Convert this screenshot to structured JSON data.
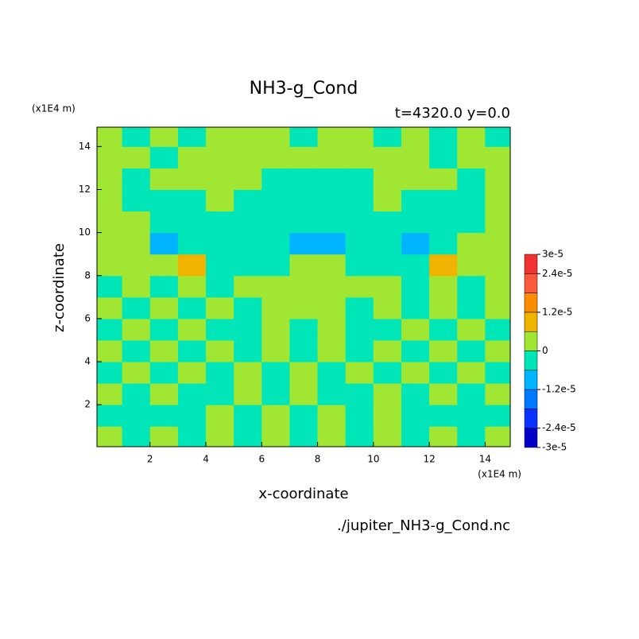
{
  "chart_data": {
    "type": "contour",
    "title": "NH3-g_Cond",
    "subtitle": "t=4320.0 y=0.0",
    "x_label": "x-coordinate",
    "y_label": "z-coordinate",
    "x_unit": "(x1E4 m)",
    "y_unit": "(x1E4 m)",
    "source": "./jupiter_NH3-g_Cond.nc",
    "xlim": [
      0.1,
      14.9
    ],
    "ylim": [
      0.05,
      14.9
    ],
    "xticks": [
      2,
      4,
      6,
      8,
      10,
      12,
      14
    ],
    "yticks": [
      2,
      4,
      6,
      8,
      10,
      12,
      14
    ],
    "levels": [
      -3e-05,
      -2.4e-05,
      -1.8e-05,
      -1.2e-05,
      -6e-06,
      0,
      6e-06,
      1.2e-05,
      1.8e-05,
      2.4e-05,
      3e-05
    ],
    "colors": [
      "#0000c8",
      "#0a32ff",
      "#0078ff",
      "#00b4ff",
      "#00e6b9",
      "#a0e632",
      "#f0b400",
      "#fa8c00",
      "#fa5a3c",
      "#f03232"
    ],
    "colorbar_ticks": [
      {
        "value": 3e-05,
        "label": "3e-5"
      },
      {
        "value": 2.4e-05,
        "label": "2.4e-5"
      },
      {
        "value": 1.2e-05,
        "label": "1.2e-5"
      },
      {
        "value": 0,
        "label": "0"
      },
      {
        "value": -1.2e-05,
        "label": "-1.2e-5"
      },
      {
        "value": -2.4e-05,
        "label": "-2.4e-5"
      },
      {
        "value": -3e-05,
        "label": "-3e-5"
      }
    ],
    "x": [
      0.5,
      1.5,
      2.5,
      3.5,
      4.5,
      5.5,
      6.5,
      7.5,
      8.5,
      9.5,
      10.5,
      11.5,
      12.5,
      13.5,
      14.5
    ],
    "y": [
      0.5,
      1.5,
      2.5,
      3.5,
      4.5,
      5.5,
      6.5,
      7.5,
      8.5,
      9.5,
      10.5,
      11.5,
      12.5,
      13.5,
      14.5
    ],
    "z": [
      [
        3e-06,
        -3e-06,
        3e-06,
        -3e-06,
        3e-06,
        -3e-06,
        3e-06,
        -3e-06,
        3e-06,
        -3e-06,
        3e-06,
        -3e-06,
        3e-06,
        -3e-06,
        3e-06
      ],
      [
        -3e-06,
        -3e-06,
        -3e-06,
        -3e-06,
        3e-06,
        -3e-06,
        3e-06,
        -3e-06,
        3e-06,
        -3e-06,
        3e-06,
        -3e-06,
        -3e-06,
        -3e-06,
        -3e-06
      ],
      [
        3e-06,
        -3e-06,
        3e-06,
        -3e-06,
        -3e-06,
        3e-06,
        -3e-06,
        3e-06,
        -3e-06,
        -3e-06,
        3e-06,
        -3e-06,
        3e-06,
        -3e-06,
        3e-06
      ],
      [
        -3e-06,
        3e-06,
        -3e-06,
        3e-06,
        -3e-06,
        3e-06,
        -3e-06,
        3e-06,
        -3e-06,
        3e-06,
        -3e-06,
        3e-06,
        -3e-06,
        3e-06,
        -3e-06
      ],
      [
        3e-06,
        -3e-06,
        3e-06,
        -3e-06,
        3e-06,
        -3e-06,
        3e-06,
        -3e-06,
        3e-06,
        -3e-06,
        3e-06,
        -3e-06,
        3e-06,
        -3e-06,
        3e-06
      ],
      [
        -3e-06,
        3e-06,
        -3e-06,
        3e-06,
        -3e-06,
        -3e-06,
        3e-06,
        -3e-06,
        3e-06,
        -3e-06,
        -3e-06,
        3e-06,
        -3e-06,
        3e-06,
        -3e-06
      ],
      [
        3e-06,
        -3e-06,
        3e-06,
        -3e-06,
        3e-06,
        -3e-06,
        3e-06,
        3e-06,
        3e-06,
        -3e-06,
        3e-06,
        -3e-06,
        3e-06,
        -3e-06,
        3e-06
      ],
      [
        -3e-06,
        3e-06,
        -3e-06,
        3e-06,
        -3e-06,
        3e-06,
        3e-06,
        3e-06,
        3e-06,
        3e-06,
        3e-06,
        -3e-06,
        3e-06,
        -3e-06,
        3e-06
      ],
      [
        3e-06,
        3e-06,
        3e-06,
        9e-06,
        -3e-06,
        -3e-06,
        -3e-06,
        3e-06,
        3e-06,
        -3e-06,
        -3e-06,
        -3e-06,
        9e-06,
        3e-06,
        3e-06
      ],
      [
        3e-06,
        3e-06,
        -9e-06,
        -3e-06,
        -3e-06,
        -3e-06,
        -3e-06,
        -9e-06,
        -9e-06,
        -3e-06,
        -3e-06,
        -9e-06,
        -3e-06,
        3e-06,
        3e-06
      ],
      [
        3e-06,
        3e-06,
        -3e-06,
        -3e-06,
        -3e-06,
        -3e-06,
        -3e-06,
        -3e-06,
        -3e-06,
        -3e-06,
        -3e-06,
        -3e-06,
        -3e-06,
        -3e-06,
        3e-06
      ],
      [
        3e-06,
        -3e-06,
        -3e-06,
        -3e-06,
        3e-06,
        -3e-06,
        -3e-06,
        -3e-06,
        -3e-06,
        -3e-06,
        3e-06,
        -3e-06,
        -3e-06,
        -3e-06,
        3e-06
      ],
      [
        3e-06,
        -3e-06,
        3e-06,
        3e-06,
        3e-06,
        3e-06,
        -3e-06,
        -3e-06,
        -3e-06,
        -3e-06,
        3e-06,
        3e-06,
        3e-06,
        -3e-06,
        3e-06
      ],
      [
        3e-06,
        3e-06,
        -3e-06,
        3e-06,
        3e-06,
        3e-06,
        3e-06,
        3e-06,
        3e-06,
        3e-06,
        3e-06,
        3e-06,
        -3e-06,
        3e-06,
        3e-06
      ],
      [
        3e-06,
        -3e-06,
        3e-06,
        -3e-06,
        3e-06,
        3e-06,
        3e-06,
        -3e-06,
        3e-06,
        3e-06,
        -3e-06,
        3e-06,
        -3e-06,
        3e-06,
        -3e-06
      ]
    ]
  }
}
